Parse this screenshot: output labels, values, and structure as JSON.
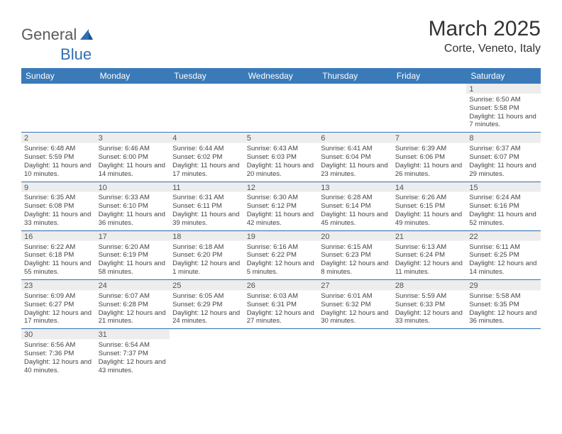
{
  "brand": {
    "part1": "General",
    "part2": "Blue"
  },
  "title": "March 2025",
  "location": "Corte, Veneto, Italy",
  "colors": {
    "header_bg": "#3a7ab8",
    "header_text": "#ffffff",
    "rule": "#2f6fb0",
    "shade": "#ededed",
    "text": "#444444"
  },
  "weekdays": [
    "Sunday",
    "Monday",
    "Tuesday",
    "Wednesday",
    "Thursday",
    "Friday",
    "Saturday"
  ],
  "first_weekday_index": 6,
  "days": [
    {
      "n": 1,
      "sunrise": "6:50 AM",
      "sunset": "5:58 PM",
      "daylight": "11 hours and 7 minutes."
    },
    {
      "n": 2,
      "sunrise": "6:48 AM",
      "sunset": "5:59 PM",
      "daylight": "11 hours and 10 minutes."
    },
    {
      "n": 3,
      "sunrise": "6:46 AM",
      "sunset": "6:00 PM",
      "daylight": "11 hours and 14 minutes."
    },
    {
      "n": 4,
      "sunrise": "6:44 AM",
      "sunset": "6:02 PM",
      "daylight": "11 hours and 17 minutes."
    },
    {
      "n": 5,
      "sunrise": "6:43 AM",
      "sunset": "6:03 PM",
      "daylight": "11 hours and 20 minutes."
    },
    {
      "n": 6,
      "sunrise": "6:41 AM",
      "sunset": "6:04 PM",
      "daylight": "11 hours and 23 minutes."
    },
    {
      "n": 7,
      "sunrise": "6:39 AM",
      "sunset": "6:06 PM",
      "daylight": "11 hours and 26 minutes."
    },
    {
      "n": 8,
      "sunrise": "6:37 AM",
      "sunset": "6:07 PM",
      "daylight": "11 hours and 29 minutes."
    },
    {
      "n": 9,
      "sunrise": "6:35 AM",
      "sunset": "6:08 PM",
      "daylight": "11 hours and 33 minutes."
    },
    {
      "n": 10,
      "sunrise": "6:33 AM",
      "sunset": "6:10 PM",
      "daylight": "11 hours and 36 minutes."
    },
    {
      "n": 11,
      "sunrise": "6:31 AM",
      "sunset": "6:11 PM",
      "daylight": "11 hours and 39 minutes."
    },
    {
      "n": 12,
      "sunrise": "6:30 AM",
      "sunset": "6:12 PM",
      "daylight": "11 hours and 42 minutes."
    },
    {
      "n": 13,
      "sunrise": "6:28 AM",
      "sunset": "6:14 PM",
      "daylight": "11 hours and 45 minutes."
    },
    {
      "n": 14,
      "sunrise": "6:26 AM",
      "sunset": "6:15 PM",
      "daylight": "11 hours and 49 minutes."
    },
    {
      "n": 15,
      "sunrise": "6:24 AM",
      "sunset": "6:16 PM",
      "daylight": "11 hours and 52 minutes."
    },
    {
      "n": 16,
      "sunrise": "6:22 AM",
      "sunset": "6:18 PM",
      "daylight": "11 hours and 55 minutes."
    },
    {
      "n": 17,
      "sunrise": "6:20 AM",
      "sunset": "6:19 PM",
      "daylight": "11 hours and 58 minutes."
    },
    {
      "n": 18,
      "sunrise": "6:18 AM",
      "sunset": "6:20 PM",
      "daylight": "12 hours and 1 minute."
    },
    {
      "n": 19,
      "sunrise": "6:16 AM",
      "sunset": "6:22 PM",
      "daylight": "12 hours and 5 minutes."
    },
    {
      "n": 20,
      "sunrise": "6:15 AM",
      "sunset": "6:23 PM",
      "daylight": "12 hours and 8 minutes."
    },
    {
      "n": 21,
      "sunrise": "6:13 AM",
      "sunset": "6:24 PM",
      "daylight": "12 hours and 11 minutes."
    },
    {
      "n": 22,
      "sunrise": "6:11 AM",
      "sunset": "6:25 PM",
      "daylight": "12 hours and 14 minutes."
    },
    {
      "n": 23,
      "sunrise": "6:09 AM",
      "sunset": "6:27 PM",
      "daylight": "12 hours and 17 minutes."
    },
    {
      "n": 24,
      "sunrise": "6:07 AM",
      "sunset": "6:28 PM",
      "daylight": "12 hours and 21 minutes."
    },
    {
      "n": 25,
      "sunrise": "6:05 AM",
      "sunset": "6:29 PM",
      "daylight": "12 hours and 24 minutes."
    },
    {
      "n": 26,
      "sunrise": "6:03 AM",
      "sunset": "6:31 PM",
      "daylight": "12 hours and 27 minutes."
    },
    {
      "n": 27,
      "sunrise": "6:01 AM",
      "sunset": "6:32 PM",
      "daylight": "12 hours and 30 minutes."
    },
    {
      "n": 28,
      "sunrise": "5:59 AM",
      "sunset": "6:33 PM",
      "daylight": "12 hours and 33 minutes."
    },
    {
      "n": 29,
      "sunrise": "5:58 AM",
      "sunset": "6:35 PM",
      "daylight": "12 hours and 36 minutes."
    },
    {
      "n": 30,
      "sunrise": "6:56 AM",
      "sunset": "7:36 PM",
      "daylight": "12 hours and 40 minutes."
    },
    {
      "n": 31,
      "sunrise": "6:54 AM",
      "sunset": "7:37 PM",
      "daylight": "12 hours and 43 minutes."
    }
  ],
  "labels": {
    "sunrise": "Sunrise:",
    "sunset": "Sunset:",
    "daylight": "Daylight:"
  }
}
